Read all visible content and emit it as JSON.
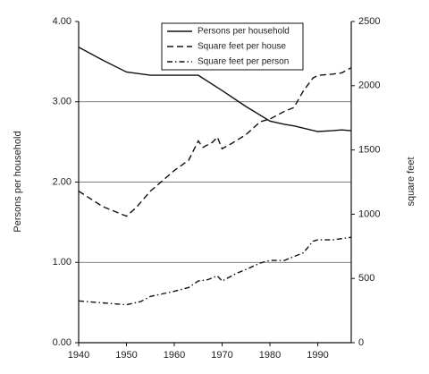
{
  "chart_data": {
    "type": "line",
    "y_label": "Persons per household",
    "y2_label": "square feet",
    "xlim": [
      1940,
      1997
    ],
    "xticks": [
      1940,
      1950,
      1960,
      1970,
      1980,
      1990
    ],
    "ylim": [
      0,
      4
    ],
    "yticks": [
      {
        "value": 0,
        "label": "0.00"
      },
      {
        "value": 1,
        "label": "1.00"
      },
      {
        "value": 2,
        "label": "2.00"
      },
      {
        "value": 3,
        "label": "3.00"
      },
      {
        "value": 4,
        "label": "4.00"
      }
    ],
    "grid_values": [
      1,
      2,
      3
    ],
    "y2lim": [
      0,
      2500
    ],
    "y2ticks": [
      0,
      500,
      1000,
      1500,
      2000,
      2500
    ],
    "series": [
      {
        "name": "Persons per household",
        "color": "#111111",
        "line_style": "solid",
        "axis": "y",
        "x": [
          1940,
          1945,
          1950,
          1955,
          1960,
          1965,
          1970,
          1975,
          1980,
          1983,
          1985,
          1990,
          1993,
          1995,
          1997
        ],
        "values": [
          3.68,
          3.52,
          3.37,
          3.33,
          3.33,
          3.33,
          3.14,
          2.94,
          2.76,
          2.72,
          2.7,
          2.63,
          2.64,
          2.65,
          2.64
        ]
      },
      {
        "name": "Square feet per house",
        "color": "#111111",
        "line_style": "dashed",
        "axis": "y2",
        "x": [
          1940,
          1945,
          1950,
          1952,
          1955,
          1960,
          1963,
          1965,
          1966,
          1968,
          1969,
          1970,
          1972,
          1975,
          1978,
          1980,
          1983,
          1985,
          1987,
          1989,
          1990,
          1993,
          1995,
          1997
        ],
        "values": [
          1180,
          1060,
          985,
          1050,
          1180,
          1340,
          1420,
          1570,
          1520,
          1560,
          1600,
          1510,
          1550,
          1620,
          1720,
          1740,
          1800,
          1830,
          1960,
          2060,
          2080,
          2090,
          2100,
          2140
        ]
      },
      {
        "name": "Square feet per person",
        "color": "#111111",
        "line_style": "dashdot",
        "axis": "y2",
        "x": [
          1940,
          1945,
          1950,
          1953,
          1955,
          1960,
          1963,
          1965,
          1967,
          1969,
          1970,
          1973,
          1975,
          1978,
          1980,
          1983,
          1985,
          1987,
          1989,
          1990,
          1993,
          1995,
          1997
        ],
        "values": [
          325,
          310,
          295,
          320,
          360,
          400,
          430,
          480,
          490,
          520,
          480,
          540,
          570,
          620,
          640,
          640,
          670,
          700,
          790,
          800,
          800,
          810,
          820
        ]
      }
    ],
    "legend_position": "top-center"
  }
}
